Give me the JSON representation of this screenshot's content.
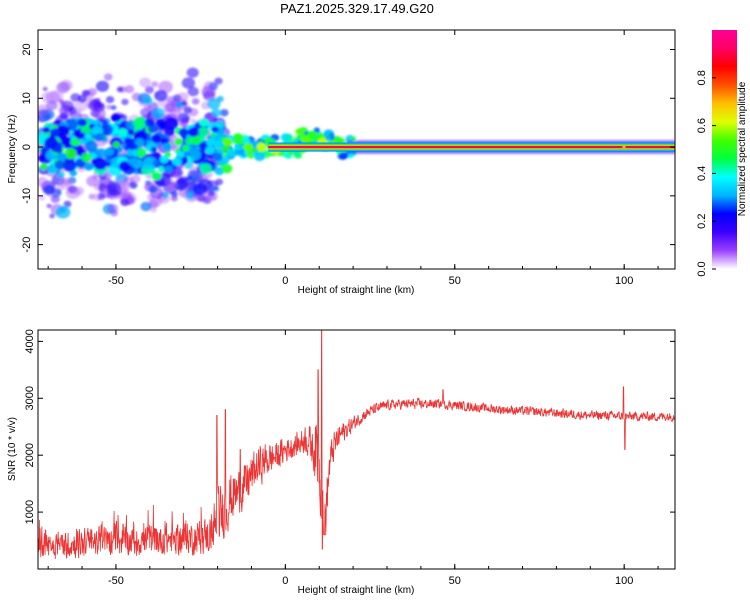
{
  "title": "PAZ1.2025.329.17.49.G20",
  "chart_data": [
    {
      "type": "heatmap",
      "xlabel": "Height of straight line (km)",
      "ylabel": "Frequency (Hz)",
      "xlim": [
        -73,
        115
      ],
      "ylim": [
        -25,
        24
      ],
      "xticks": [
        -50,
        0,
        50,
        100
      ],
      "yticks": [
        -20,
        -10,
        0,
        10,
        20
      ],
      "colorbar": {
        "label": "Normalized spectral amplitude",
        "range": [
          0,
          1
        ],
        "ticks": [
          "0.0",
          "0.2",
          "0.4",
          "0.6",
          "0.8"
        ],
        "colors": [
          "#ffffff",
          "#9b40ff",
          "#3c00ff",
          "#0000ff",
          "#00b4ff",
          "#00ffff",
          "#00ff40",
          "#40ff00",
          "#e0ff00",
          "#ffc000",
          "#ff5000",
          "#ff0000",
          "#ff0064",
          "#ff0096"
        ]
      },
      "ridge": {
        "x_start": -5,
        "x_end": 115,
        "frequency": 0,
        "amplitude": 0.95
      },
      "clusters": [
        {
          "x": -68,
          "y": 3,
          "amp": 0.25
        },
        {
          "x": -66,
          "y": -2,
          "amp": 0.3
        },
        {
          "x": -62,
          "y": 1,
          "amp": 0.45
        },
        {
          "x": -60,
          "y": 5,
          "amp": 0.25
        },
        {
          "x": -58,
          "y": -4,
          "amp": 0.3
        },
        {
          "x": -55,
          "y": 2,
          "amp": 0.28
        },
        {
          "x": -52,
          "y": -1,
          "amp": 0.3
        },
        {
          "x": -50,
          "y": 6,
          "amp": 0.22
        },
        {
          "x": -48,
          "y": 3,
          "amp": 0.4
        },
        {
          "x": -45,
          "y": -3,
          "amp": 0.3
        },
        {
          "x": -43,
          "y": 1,
          "amp": 0.3
        },
        {
          "x": -40,
          "y": 5,
          "amp": 0.25
        },
        {
          "x": -38,
          "y": -6,
          "amp": 0.45
        },
        {
          "x": -35,
          "y": 0,
          "amp": 0.3
        },
        {
          "x": -32,
          "y": -3,
          "amp": 0.35
        },
        {
          "x": -30,
          "y": 3,
          "amp": 0.25
        },
        {
          "x": -27,
          "y": -1,
          "amp": 0.3
        },
        {
          "x": -24,
          "y": 5,
          "amp": 0.4
        },
        {
          "x": -22,
          "y": 1,
          "amp": 0.35
        },
        {
          "x": -20,
          "y": -2,
          "amp": 0.28
        },
        {
          "x": -17,
          "y": 1,
          "amp": 0.55
        },
        {
          "x": -14,
          "y": 2,
          "amp": 0.5
        },
        {
          "x": -11,
          "y": 0,
          "amp": 0.55
        },
        {
          "x": -7,
          "y": 0,
          "amp": 0.6
        },
        {
          "x": -3,
          "y": -0.5,
          "amp": 0.65
        },
        {
          "x": 2,
          "y": 0,
          "amp": 0.5
        },
        {
          "x": 6,
          "y": 1.5,
          "amp": 0.55
        },
        {
          "x": 8,
          "y": 2.5,
          "amp": 0.5
        },
        {
          "x": 11,
          "y": 1,
          "amp": 0.6
        },
        {
          "x": 14,
          "y": 0.5,
          "amp": 0.55
        },
        {
          "x": 17,
          "y": 0,
          "amp": 0.6
        }
      ]
    },
    {
      "type": "line",
      "xlabel": "Height of straight line (km)",
      "ylabel": "SNR (10 * v/v)",
      "xlim": [
        -73,
        115
      ],
      "ylim": [
        0,
        4200
      ],
      "xticks": [
        -50,
        0,
        50,
        100
      ],
      "yticks": [
        1000,
        2000,
        3000,
        4000
      ],
      "series": [
        {
          "name": "SNR",
          "color": "#ee3333",
          "x": [
            -73,
            -65,
            -55,
            -45,
            -35,
            -25,
            -22,
            -20,
            -18,
            -16,
            -14,
            -12,
            -10,
            -8,
            -6,
            -4,
            -2,
            0,
            2,
            4,
            6,
            8,
            10,
            11,
            12,
            13,
            14,
            16,
            18,
            20,
            23,
            26,
            30,
            35,
            40,
            45,
            50,
            55,
            60,
            65,
            70,
            75,
            80,
            85,
            90,
            95,
            100,
            105,
            110,
            115
          ],
          "values": [
            400,
            430,
            480,
            500,
            520,
            550,
            620,
            850,
            1050,
            1250,
            1350,
            1450,
            1650,
            1800,
            1900,
            1950,
            2000,
            2100,
            2150,
            2200,
            2300,
            2150,
            2000,
            1100,
            1000,
            1800,
            2100,
            2350,
            2450,
            2550,
            2700,
            2800,
            2880,
            2900,
            2900,
            2900,
            2880,
            2850,
            2820,
            2800,
            2780,
            2760,
            2740,
            2720,
            2700,
            2700,
            2680,
            2680,
            2680,
            2680
          ],
          "noise_amplitude": [
            280,
            300,
            320,
            330,
            340,
            350,
            420,
            650,
            600,
            550,
            500,
            480,
            450,
            420,
            380,
            340,
            300,
            280,
            260,
            260,
            320,
            420,
            1000,
            700,
            600,
            400,
            340,
            260,
            200,
            160,
            130,
            120,
            110,
            110,
            110,
            100,
            100,
            100,
            100,
            100,
            100,
            100,
            100,
            100,
            100,
            100,
            100,
            100,
            100,
            100
          ],
          "spikes": [
            {
              "x": -17.7,
              "value": 2800
            },
            {
              "x": -20.2,
              "value": 2700
            },
            {
              "x": -13.3,
              "value": 2100
            },
            {
              "x": 9.7,
              "value": 3500
            },
            {
              "x": 10.7,
              "value": 4200
            },
            {
              "x": 10.9,
              "value": 350
            },
            {
              "x": 11.5,
              "value": 600
            },
            {
              "x": 46.5,
              "value": 3150
            },
            {
              "x": 99.8,
              "value": 3200
            },
            {
              "x": 100.2,
              "value": 2100
            }
          ]
        }
      ]
    }
  ]
}
